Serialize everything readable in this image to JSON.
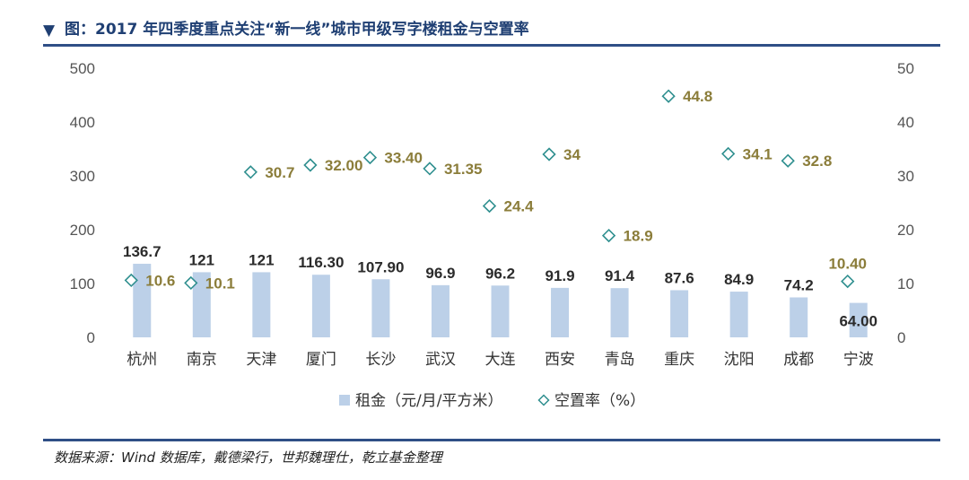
{
  "header": {
    "marker": "▼",
    "title": "图：2017 年四季度重点关注“新一线”城市甲级写字楼租金与空置率"
  },
  "source": "数据来源：Wind 数据库，戴德梁行，世邦魏理仕，乾立基金整理",
  "colors": {
    "bar": "#bcd0e8",
    "rate_marker": "#2f8f8f",
    "rent_label": "#2b2b2b",
    "rate_label": "#8b7d3a",
    "axis_text": "#555555",
    "rule": "#2f4f86"
  },
  "chart_data": {
    "type": "bar",
    "categories": [
      "杭州",
      "南京",
      "天津",
      "厦门",
      "长沙",
      "武汉",
      "大连",
      "西安",
      "青岛",
      "重庆",
      "沈阳",
      "成都",
      "宁波"
    ],
    "series": [
      {
        "name": "租金（元/月/平方米）",
        "kind": "bar",
        "axis": "left",
        "values": [
          136.7,
          121,
          121,
          116.3,
          107.9,
          96.9,
          96.2,
          91.9,
          91.4,
          87.6,
          84.9,
          74.2,
          64.0
        ],
        "labels": [
          "136.7",
          "121",
          "121",
          "116.30",
          "107.90",
          "96.9",
          "96.2",
          "91.9",
          "91.4",
          "87.6",
          "84.9",
          "74.2",
          "64.00"
        ]
      },
      {
        "name": "空置率（%）",
        "kind": "scatter",
        "axis": "right",
        "values": [
          10.6,
          10.1,
          30.7,
          32.0,
          33.4,
          31.35,
          24.4,
          34,
          18.9,
          44.8,
          34.1,
          32.8,
          10.4
        ],
        "labels": [
          "10.6",
          "10.1",
          "30.7",
          "32.00",
          "33.40",
          "31.35",
          "24.4",
          "34",
          "18.9",
          "44.8",
          "34.1",
          "32.8",
          "10.40"
        ]
      }
    ],
    "ylim": [
      0,
      500
    ],
    "yticks": [
      "0",
      "100",
      "200",
      "300",
      "400",
      "500"
    ],
    "y2lim": [
      0,
      50
    ],
    "y2ticks": [
      "0",
      "10",
      "20",
      "30",
      "40",
      "50"
    ],
    "legend_position": "bottom-center"
  }
}
